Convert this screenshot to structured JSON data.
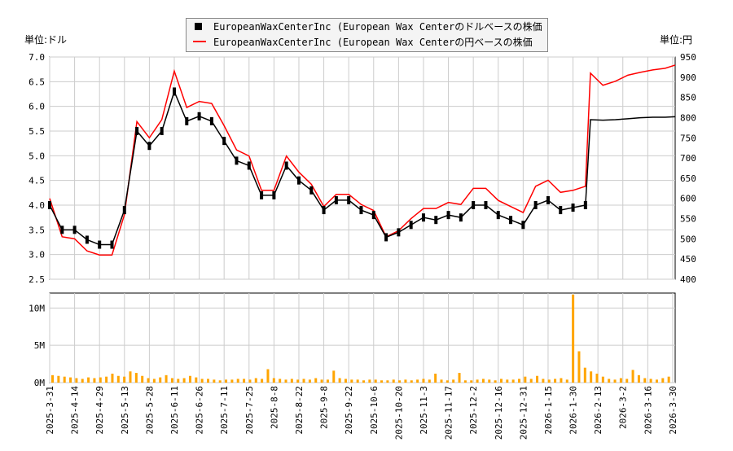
{
  "units": {
    "left": "単位:ドル",
    "right": "単位:円"
  },
  "legend": [
    {
      "label": "EuropeanWaxCenterInc (European Wax Centerのドルベースの株価",
      "color": "#000000",
      "marker": "square"
    },
    {
      "label": "EuropeanWaxCenterInc (European Wax Centerの円ベースの株価",
      "color": "#ff0000",
      "marker": "line"
    }
  ],
  "chart_data": {
    "type": "line",
    "x_ticks": [
      "2025-3-31",
      "2025-4-14",
      "2025-4-29",
      "2025-5-13",
      "2025-5-28",
      "2025-6-11",
      "2025-6-26",
      "2025-7-11",
      "2025-7-25",
      "2025-8-8",
      "2025-8-22",
      "2025-9-8",
      "2025-9-22",
      "2025-10-6",
      "2025-10-20",
      "2025-11-3",
      "2025-11-17",
      "2025-12-2",
      "2025-12-16",
      "2025-12-31",
      "2026-1-15",
      "2026-1-30",
      "2026-2-13",
      "2026-3-2",
      "2026-3-16",
      "2026-3-30"
    ],
    "y_left": {
      "range": [
        2.5,
        7.0
      ],
      "ticks": [
        "2.5",
        "3.0",
        "3.5",
        "4.0",
        "4.5",
        "5.0",
        "5.5",
        "6.0",
        "6.5",
        "7.0"
      ]
    },
    "y_right": {
      "range": [
        400,
        950
      ],
      "ticks": [
        "400",
        "450",
        "500",
        "550",
        "600",
        "650",
        "700",
        "750",
        "800",
        "850",
        "900",
        "950"
      ]
    },
    "volume_axis": {
      "range": [
        0,
        12
      ],
      "ticks": [
        "0M",
        "5M",
        "10M"
      ]
    },
    "grid": true,
    "legend_placement": "top-center",
    "trading_day_index": [
      0,
      5,
      10,
      15,
      20,
      25,
      30,
      35,
      40,
      45,
      50,
      55,
      60,
      65,
      70,
      75,
      80,
      85,
      90,
      95,
      100,
      105,
      110,
      115,
      120,
      125,
      130,
      135,
      140,
      145,
      150,
      155,
      160,
      165,
      170,
      175,
      180,
      185,
      190,
      195,
      200,
      205,
      210,
      215,
      217,
      222,
      227,
      232,
      237,
      242,
      247,
      251
    ],
    "series": [
      {
        "name": "EuropeanWaxCenterInc (European Wax Centerのドルベースの株価",
        "color": "#000000",
        "values": [
          4.0,
          3.5,
          3.5,
          3.3,
          3.2,
          3.2,
          3.9,
          5.5,
          5.2,
          5.5,
          6.3,
          5.7,
          5.8,
          5.7,
          5.3,
          4.9,
          4.8,
          4.2,
          4.2,
          4.8,
          4.5,
          4.3,
          3.9,
          4.1,
          4.1,
          3.9,
          3.8,
          3.35,
          3.45,
          3.6,
          3.75,
          3.7,
          3.8,
          3.75,
          4.0,
          4.0,
          3.8,
          3.7,
          3.6,
          4.0,
          4.1,
          3.9,
          3.95,
          4.0,
          5.73,
          5.72,
          5.73,
          5.75,
          5.77,
          5.78,
          5.78,
          5.79
        ]
      },
      {
        "name": "EuropeanWaxCenterInc (European Wax Centerの円ベースの株価",
        "color": "#ff0000",
        "values": [
          600,
          505,
          500,
          470,
          460,
          460,
          560,
          790,
          750,
          795,
          915,
          825,
          840,
          835,
          780,
          720,
          705,
          620,
          620,
          705,
          665,
          635,
          580,
          610,
          610,
          585,
          570,
          505,
          520,
          550,
          575,
          575,
          590,
          585,
          625,
          625,
          595,
          580,
          565,
          630,
          645,
          615,
          620,
          630,
          910,
          880,
          890,
          905,
          912,
          918,
          922,
          930
        ]
      }
    ],
    "volume_M": [
      1.0,
      0.9,
      0.8,
      0.7,
      0.6,
      0.5,
      0.7,
      0.6,
      0.7,
      0.8,
      1.2,
      0.9,
      0.8,
      1.5,
      1.3,
      0.9,
      0.6,
      0.5,
      0.7,
      1.0,
      0.6,
      0.5,
      0.6,
      0.9,
      0.7,
      0.5,
      0.5,
      0.4,
      0.3,
      0.4,
      0.4,
      0.5,
      0.5,
      0.4,
      0.6,
      0.5,
      1.8,
      0.6,
      0.5,
      0.4,
      0.5,
      0.4,
      0.5,
      0.4,
      0.6,
      0.4,
      0.4,
      1.6,
      0.6,
      0.5,
      0.4,
      0.4,
      0.3,
      0.4,
      0.4,
      0.3,
      0.3,
      0.4,
      0.3,
      0.4,
      0.3,
      0.4,
      0.5,
      0.4,
      1.2,
      0.4,
      0.3,
      0.4,
      1.3,
      0.3,
      0.3,
      0.4,
      0.5,
      0.4,
      0.3,
      0.5,
      0.4,
      0.4,
      0.5,
      0.8,
      0.5,
      0.9,
      0.5,
      0.4,
      0.5,
      0.6,
      0.4,
      11.8,
      4.2,
      2.0,
      1.5,
      1.2,
      0.8,
      0.5,
      0.4,
      0.6,
      0.5,
      1.7,
      1.0,
      0.6,
      0.5,
      0.4,
      0.6,
      0.8
    ],
    "volume_color": "#ffa500"
  }
}
